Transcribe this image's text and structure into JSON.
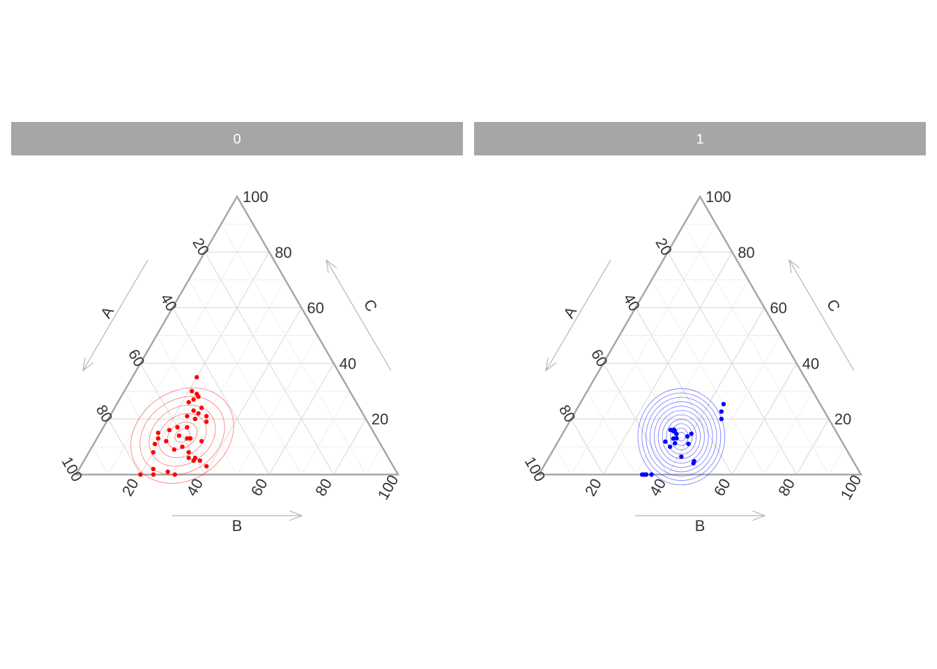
{
  "chart_data": {
    "type": "scatter",
    "subtype": "ternary",
    "axes": {
      "a_label": "A",
      "b_label": "B",
      "c_label": "C"
    },
    "ticks": [
      "20",
      "40",
      "60",
      "80",
      "100"
    ],
    "grid": true,
    "colors": {
      "strip_bg": "#a6a6a6",
      "strip_text": "#ffffff",
      "frame": "#a6a6a6",
      "grid_major": "#d9d9d9",
      "grid_minor": "#ececec",
      "arrow": "#b3b3b3"
    },
    "panels": [
      {
        "label": "0",
        "color": "#ff0000",
        "points": [
          {
            "a": 45,
            "b": 20,
            "c": 35
          },
          {
            "a": 48,
            "b": 23,
            "c": 29
          },
          {
            "a": 49,
            "b": 21,
            "c": 30
          },
          {
            "a": 48,
            "b": 24,
            "c": 28
          },
          {
            "a": 52,
            "b": 22,
            "c": 26
          },
          {
            "a": 50,
            "b": 23,
            "c": 27
          },
          {
            "a": 51,
            "b": 27,
            "c": 22
          },
          {
            "a": 52,
            "b": 25,
            "c": 23
          },
          {
            "a": 49,
            "b": 27,
            "c": 24
          },
          {
            "a": 53,
            "b": 27,
            "c": 20
          },
          {
            "a": 49,
            "b": 30,
            "c": 21
          },
          {
            "a": 50,
            "b": 31,
            "c": 19
          },
          {
            "a": 55,
            "b": 24,
            "c": 21
          },
          {
            "a": 57,
            "b": 26,
            "c": 17
          },
          {
            "a": 60,
            "b": 23,
            "c": 17
          },
          {
            "a": 59,
            "b": 28,
            "c": 13
          },
          {
            "a": 63,
            "b": 21,
            "c": 16
          },
          {
            "a": 61,
            "b": 25,
            "c": 14
          },
          {
            "a": 62,
            "b": 28,
            "c": 10
          },
          {
            "a": 66,
            "b": 22,
            "c": 12
          },
          {
            "a": 67,
            "b": 18,
            "c": 15
          },
          {
            "a": 65,
            "b": 26,
            "c": 9
          },
          {
            "a": 68,
            "b": 19,
            "c": 13
          },
          {
            "a": 70,
            "b": 19,
            "c": 11
          },
          {
            "a": 72,
            "b": 20,
            "c": 8
          },
          {
            "a": 62,
            "b": 32,
            "c": 6
          },
          {
            "a": 58,
            "b": 29,
            "c": 13
          },
          {
            "a": 55,
            "b": 33,
            "c": 12
          },
          {
            "a": 59,
            "b": 36,
            "c": 5
          },
          {
            "a": 61,
            "b": 34,
            "c": 5
          },
          {
            "a": 60,
            "b": 34,
            "c": 6
          },
          {
            "a": 70,
            "b": 31,
            "c": -1
          },
          {
            "a": 75,
            "b": 23,
            "c": 2
          },
          {
            "a": 79,
            "b": 25,
            "c": -4
          },
          {
            "a": 80,
            "b": 20,
            "c": 0
          },
          {
            "a": 61,
            "b": 31,
            "c": 8
          },
          {
            "a": 58,
            "b": 39,
            "c": 3
          },
          {
            "a": 71,
            "b": 28,
            "c": 1
          }
        ],
        "contours": [
          {
            "a": 60,
            "b": 26,
            "c": 14,
            "sa": 2.5,
            "sb": 3,
            "rot": 55
          },
          {
            "a": 60,
            "b": 26,
            "c": 14,
            "sa": 5,
            "sb": 6,
            "rot": 55
          },
          {
            "a": 60,
            "b": 26,
            "c": 14,
            "sa": 8,
            "sb": 10,
            "rot": 55
          },
          {
            "a": 60,
            "b": 26,
            "c": 14,
            "sa": 11,
            "sb": 14,
            "rot": 55
          },
          {
            "a": 60,
            "b": 26,
            "c": 14,
            "sa": 14,
            "sb": 18,
            "rot": 55
          },
          {
            "a": 60,
            "b": 26,
            "c": 14,
            "sa": 17,
            "sb": 22,
            "rot": 55
          }
        ]
      },
      {
        "label": "1",
        "color": "#0000ff",
        "points": [
          {
            "a": 45,
            "b": 67,
            "c": 38
          },
          {
            "a": 48,
            "b": 68,
            "c": 34
          },
          {
            "a": 50,
            "b": 70,
            "c": 30
          },
          {
            "a": 67,
            "b": 36,
            "c": -3
          },
          {
            "a": 70,
            "b": 33,
            "c": -3
          },
          {
            "a": 70,
            "b": 34,
            "c": -4
          },
          {
            "a": 70,
            "b": 35,
            "c": -5
          },
          {
            "a": 64,
            "b": 44,
            "c": 20
          },
          {
            "a": 65,
            "b": 44,
            "c": 21
          },
          {
            "a": 65,
            "b": 46,
            "c": 19
          },
          {
            "a": 68,
            "b": 46,
            "c": 21
          },
          {
            "a": 70,
            "b": 45,
            "c": 22
          },
          {
            "a": 74,
            "b": 45,
            "c": 16
          },
          {
            "a": 72,
            "b": 49,
            "c": 18
          },
          {
            "a": 70,
            "b": 50,
            "c": 18
          },
          {
            "a": 76,
            "b": 50,
            "c": 14
          },
          {
            "a": 74,
            "b": 52,
            "c": 16
          },
          {
            "a": 68,
            "b": 60,
            "c": 22
          },
          {
            "a": 72,
            "b": 60,
            "c": 21
          },
          {
            "a": 74,
            "b": 63,
            "c": 17
          },
          {
            "a": 82,
            "b": 64,
            "c": 10
          },
          {
            "a": 82,
            "b": 76,
            "c": 8
          },
          {
            "a": 86,
            "b": 79,
            "c": 7
          }
        ],
        "contours": [
          {
            "a": 72,
            "b": 55,
            "c": 20,
            "sa": 2,
            "sb": 3,
            "rot": 0
          },
          {
            "a": 72,
            "b": 55,
            "c": 20,
            "sa": 4,
            "sb": 5,
            "rot": 0
          },
          {
            "a": 72,
            "b": 55,
            "c": 20,
            "sa": 6,
            "sb": 8,
            "rot": 0
          },
          {
            "a": 72,
            "b": 55,
            "c": 20,
            "sa": 8,
            "sb": 11,
            "rot": 0
          },
          {
            "a": 72,
            "b": 55,
            "c": 20,
            "sa": 10,
            "sb": 14,
            "rot": 0
          },
          {
            "a": 72,
            "b": 55,
            "c": 20,
            "sa": 12,
            "sb": 17,
            "rot": 0
          },
          {
            "a": 72,
            "b": 55,
            "c": 20,
            "sa": 14,
            "sb": 20,
            "rot": 0
          },
          {
            "a": 72,
            "b": 55,
            "c": 20,
            "sa": 16,
            "sb": 23,
            "rot": 0
          },
          {
            "a": 72,
            "b": 55,
            "c": 20,
            "sa": 18,
            "sb": 26,
            "rot": 0
          },
          {
            "a": 72,
            "b": 55,
            "c": 20,
            "sa": 20,
            "sb": 29,
            "rot": 0
          },
          {
            "a": 72,
            "b": 55,
            "c": 20,
            "sa": 22,
            "sb": 32,
            "rot": 0
          }
        ]
      }
    ]
  }
}
